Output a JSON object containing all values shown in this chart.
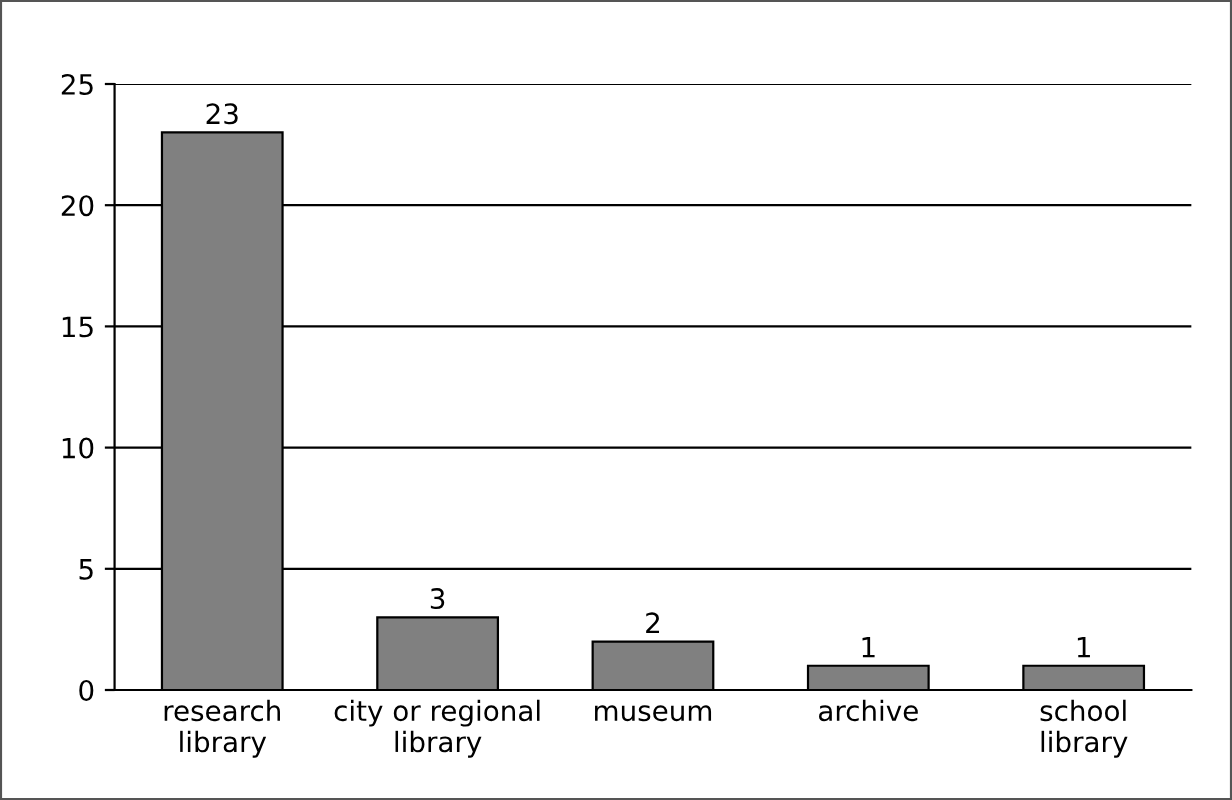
{
  "chart_data": {
    "type": "bar",
    "categories": [
      "research\nlibrary",
      "city or regional\nlibrary",
      "museum",
      "archive",
      "school\nlibrary"
    ],
    "values": [
      23,
      3,
      2,
      1,
      1
    ],
    "color": "#808080",
    "ylim": [
      0,
      25
    ],
    "yticks": [
      0,
      5,
      10,
      15,
      20,
      25
    ],
    "grid": "y",
    "data_labels": true
  }
}
